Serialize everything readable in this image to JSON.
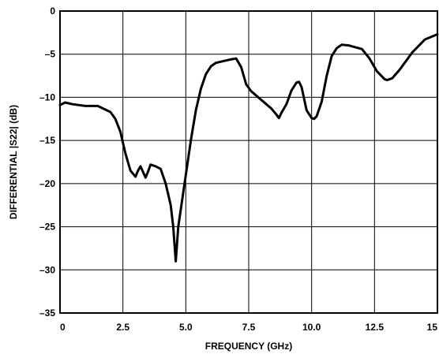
{
  "chart_data": {
    "type": "line",
    "title": "",
    "xlabel": "FREQUENCY (GHz)",
    "ylabel": "DIFFERENTIAL |S22| (dB)",
    "xlim": [
      0,
      15
    ],
    "ylim": [
      -35,
      0
    ],
    "grid": true,
    "legend": "none",
    "line_color": "#000000",
    "x_ticks": [
      0,
      2.5,
      5.0,
      7.5,
      10.0,
      12.5,
      15
    ],
    "x_tick_labels": [
      "0",
      "2.5",
      "5.0",
      "7.5",
      "10.0",
      "12.5",
      "15"
    ],
    "y_ticks": [
      0,
      -5,
      -10,
      -15,
      -20,
      -25,
      -30,
      -35
    ],
    "y_tick_labels": [
      "0",
      "–5",
      "–10",
      "–15",
      "–20",
      "–25",
      "–30",
      "–35"
    ],
    "series": [
      {
        "x": [
          0,
          0.2,
          0.5,
          1.0,
          1.5,
          2.0,
          2.2,
          2.4,
          2.6,
          2.8,
          3.0,
          3.1,
          3.2,
          3.4,
          3.5,
          3.6,
          3.8,
          4.0,
          4.2,
          4.4,
          4.5,
          4.55,
          4.6,
          4.65,
          4.7,
          4.8,
          4.9,
          5.0,
          5.2,
          5.4,
          5.6,
          5.8,
          6.0,
          6.2,
          6.5,
          6.8,
          7.0,
          7.2,
          7.4,
          7.6,
          7.8,
          8.0,
          8.2,
          8.4,
          8.6,
          8.7,
          8.8,
          9.0,
          9.2,
          9.4,
          9.5,
          9.6,
          9.8,
          10.0,
          10.1,
          10.2,
          10.4,
          10.6,
          10.8,
          11.0,
          11.2,
          11.5,
          12.0,
          12.3,
          12.6,
          12.9,
          13.0,
          13.2,
          13.5,
          14.0,
          14.5,
          15.0
        ],
        "y": [
          -10.9,
          -10.6,
          -10.8,
          -11.0,
          -11.0,
          -11.7,
          -12.5,
          -14.0,
          -16.5,
          -18.5,
          -19.2,
          -18.5,
          -18.0,
          -19.3,
          -18.6,
          -17.8,
          -18.0,
          -18.3,
          -20.0,
          -22.5,
          -25.0,
          -27.0,
          -29.0,
          -27.0,
          -25.0,
          -23.0,
          -21.0,
          -19.0,
          -15.0,
          -11.5,
          -9.0,
          -7.3,
          -6.4,
          -6.0,
          -5.8,
          -5.6,
          -5.5,
          -6.5,
          -8.5,
          -9.3,
          -9.8,
          -10.3,
          -10.8,
          -11.3,
          -12.0,
          -12.4,
          -11.8,
          -10.8,
          -9.2,
          -8.3,
          -8.2,
          -8.8,
          -11.5,
          -12.4,
          -12.5,
          -12.2,
          -10.5,
          -7.5,
          -5.2,
          -4.3,
          -3.9,
          -4.0,
          -4.4,
          -5.5,
          -7.0,
          -7.9,
          -8.0,
          -7.8,
          -6.8,
          -4.8,
          -3.3,
          -2.7
        ]
      }
    ]
  }
}
